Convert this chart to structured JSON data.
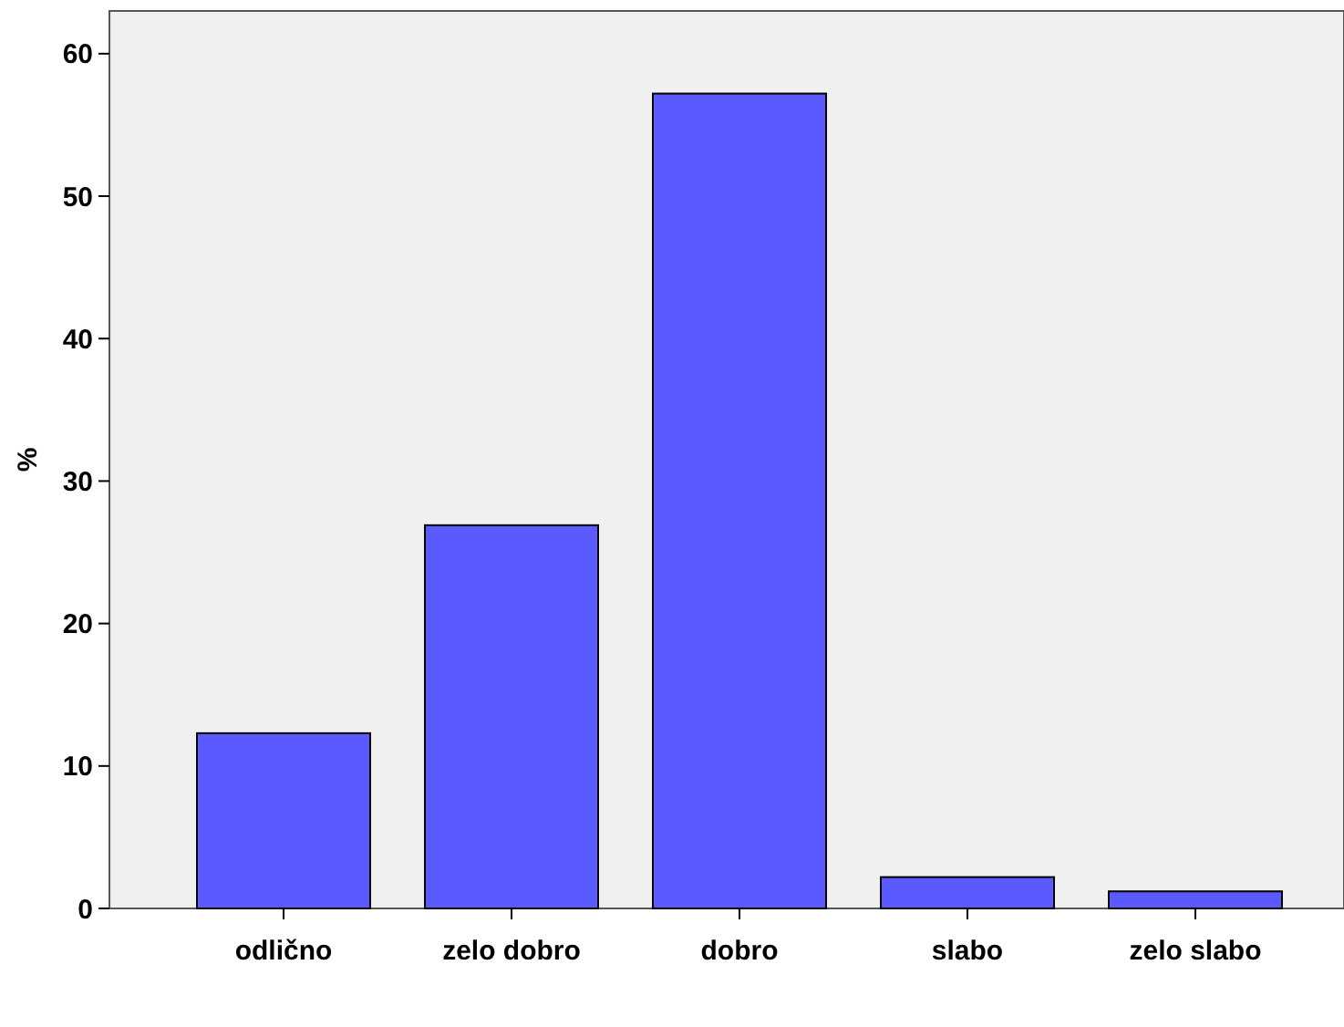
{
  "chart_data": {
    "type": "bar",
    "ylabel": "%",
    "categories": [
      "odlično",
      "zelo dobro",
      "dobro",
      "slabo",
      "zelo slabo"
    ],
    "values": [
      12.3,
      26.9,
      57.2,
      2.2,
      1.2
    ],
    "color": "#5a5aff",
    "ylim": [
      0,
      63
    ],
    "yticks": [
      0,
      10,
      20,
      30,
      40,
      50,
      60
    ],
    "grid": false
  }
}
